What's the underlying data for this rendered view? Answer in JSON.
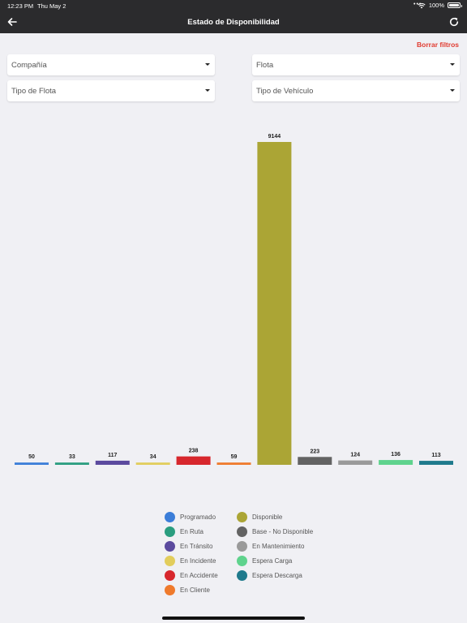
{
  "status_bar": {
    "time": "12:23 PM",
    "date": "Thu May 2",
    "battery": "100%"
  },
  "header": {
    "title": "Estado de Disponibilidad",
    "back_icon": "back-arrow-icon",
    "refresh_icon": "refresh-icon"
  },
  "filters": {
    "clear_label": "Borrar filtros",
    "company": "Compañía",
    "fleet": "Flota",
    "fleet_type": "Tipo de Flota",
    "vehicle_type": "Tipo de Vehículo"
  },
  "chart_data": {
    "type": "bar",
    "categories": [
      "Programado",
      "En Ruta",
      "En Tránsito",
      "En Incidente",
      "En Accidente",
      "En Cliente",
      "Disponible",
      "Base - No Disponible",
      "En Mantenimiento",
      "Espera Carga",
      "Espera Descarga"
    ],
    "values": [
      50,
      33,
      117,
      34,
      238,
      59,
      9144,
      223,
      124,
      136,
      113
    ],
    "colors": [
      "#3b7dd8",
      "#2a9d7f",
      "#5b4a9e",
      "#e2cd5c",
      "#d7272d",
      "#ef7a2c",
      "#aba535",
      "#636363",
      "#9a9a9a",
      "#5fd38d",
      "#1f7a8c"
    ],
    "ylim": [
      0,
      9144
    ]
  },
  "legend": {
    "left": [
      {
        "label": "Programado",
        "color": "#3b7dd8"
      },
      {
        "label": "En Ruta",
        "color": "#2a9d7f"
      },
      {
        "label": "En Tránsito",
        "color": "#5b4a9e"
      },
      {
        "label": "En Incidente",
        "color": "#e2cd5c"
      },
      {
        "label": "En Accidente",
        "color": "#d7272d"
      },
      {
        "label": "En Cliente",
        "color": "#ef7a2c"
      }
    ],
    "right": [
      {
        "label": "Disponible",
        "color": "#aba535"
      },
      {
        "label": "Base - No Disponible",
        "color": "#636363"
      },
      {
        "label": "En Mantenimiento",
        "color": "#9a9a9a"
      },
      {
        "label": "Espera Carga",
        "color": "#5fd38d"
      },
      {
        "label": "Espera Descarga",
        "color": "#1f7a8c"
      }
    ]
  }
}
